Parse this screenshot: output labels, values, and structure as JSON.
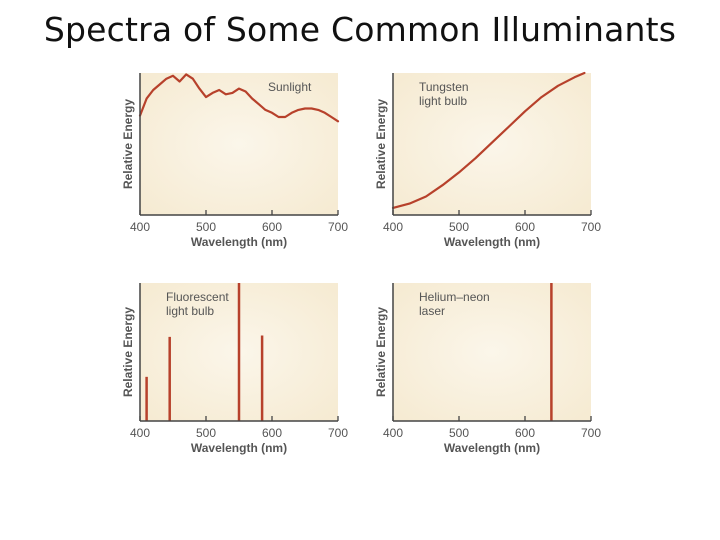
{
  "page": {
    "title": "Spectra of Some Common Illuminants"
  },
  "colors": {
    "curve": "#B7412B",
    "panel_edge": "#F6EBD3",
    "panel_center": "#FBF6EA",
    "axis": "#444444",
    "text": "#555555"
  },
  "chart_data": [
    {
      "type": "line",
      "annotation": "Sunlight",
      "xlabel": "Wavelength (nm)",
      "ylabel": "Relative Energy",
      "xlim": [
        400,
        700
      ],
      "ylim": [
        0,
        1
      ],
      "xticks": [
        "400",
        "500",
        "600",
        "700"
      ],
      "grid": false,
      "x": [
        400,
        410,
        420,
        430,
        440,
        450,
        460,
        470,
        480,
        490,
        500,
        510,
        520,
        530,
        540,
        550,
        560,
        570,
        580,
        590,
        600,
        610,
        620,
        630,
        640,
        650,
        660,
        670,
        680,
        690,
        700
      ],
      "y": [
        0.7,
        0.82,
        0.88,
        0.92,
        0.96,
        0.98,
        0.94,
        0.99,
        0.96,
        0.89,
        0.83,
        0.86,
        0.88,
        0.85,
        0.86,
        0.89,
        0.87,
        0.82,
        0.78,
        0.74,
        0.72,
        0.69,
        0.69,
        0.72,
        0.74,
        0.75,
        0.75,
        0.74,
        0.72,
        0.69,
        0.66
      ]
    },
    {
      "type": "line",
      "annotation": "Tungsten light bulb",
      "annotation_lines": [
        "Tungsten",
        "light bulb"
      ],
      "xlabel": "Wavelength (nm)",
      "ylabel": "Relative Energy",
      "xlim": [
        400,
        700
      ],
      "ylim": [
        0,
        1
      ],
      "xticks": [
        "400",
        "500",
        "600",
        "700"
      ],
      "grid": false,
      "x": [
        400,
        425,
        450,
        475,
        500,
        525,
        550,
        575,
        600,
        625,
        650,
        675,
        690
      ],
      "y": [
        0.05,
        0.08,
        0.13,
        0.21,
        0.3,
        0.4,
        0.51,
        0.62,
        0.73,
        0.83,
        0.91,
        0.97,
        1.0
      ]
    },
    {
      "type": "bar",
      "annotation": "Fluorescent light bulb",
      "annotation_lines": [
        "Fluorescent",
        "light bulb"
      ],
      "xlabel": "Wavelength (nm)",
      "ylabel": "Relative Energy",
      "xlim": [
        400,
        700
      ],
      "ylim": [
        0,
        1
      ],
      "xticks": [
        "400",
        "500",
        "600",
        "700"
      ],
      "grid": false,
      "x": [
        410,
        445,
        550,
        585
      ],
      "y": [
        0.32,
        0.61,
        1.0,
        0.62
      ]
    },
    {
      "type": "bar",
      "annotation": "Helium–neon laser",
      "annotation_lines": [
        "Helium–neon",
        "laser"
      ],
      "xlabel": "Wavelength (nm)",
      "ylabel": "Relative Energy",
      "xlim": [
        400,
        700
      ],
      "ylim": [
        0,
        1
      ],
      "xticks": [
        "400",
        "500",
        "600",
        "700"
      ],
      "grid": false,
      "x": [
        640
      ],
      "y": [
        1.0
      ]
    }
  ]
}
